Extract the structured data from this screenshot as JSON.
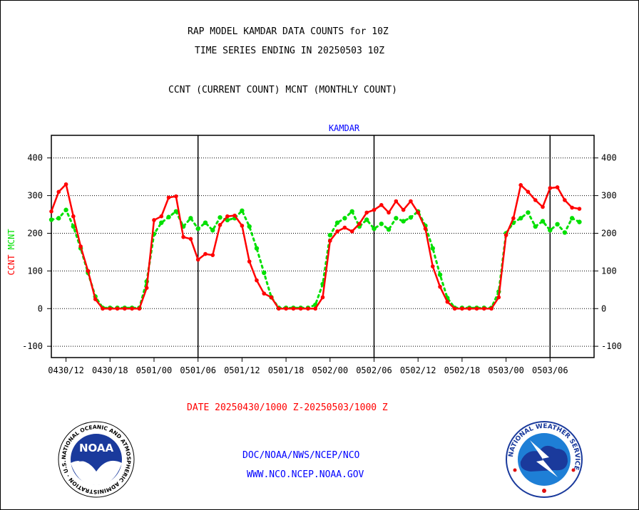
{
  "header": {
    "title_line1": "RAP MODEL KAMDAR DATA COUNTS for 10Z",
    "title_line2": "TIME SERIES ENDING IN 20250503 10Z",
    "subtitle": "CCNT (CURRENT COUNT) MCNT (MONTHLY COUNT)"
  },
  "footer": {
    "date_range": "DATE 20250430/1000 Z-20250503/1000 Z",
    "org_line": "DOC/NOAA/NWS/NCEP/NCO",
    "url_line": "WWW.NCO.NCEP.NOAA.GOV"
  },
  "logos": {
    "noaa_text": "NOAA",
    "noaa_ring": "NATIONAL OCEANIC AND ATMOSPHERIC ADMINISTRATION · U.S. DEPARTMENT OF COMMERCE ·",
    "nws_ring": "NATIONAL WEATHER SERVICE"
  },
  "chart_data": {
    "type": "line",
    "title": "KAMDAR",
    "ylabel_left_1": "CCNT",
    "ylabel_left_2": "MCNT",
    "ylim": [
      -130,
      460
    ],
    "xlim": [
      -2,
      72
    ],
    "yticks": [
      -100,
      0,
      100,
      200,
      300,
      400
    ],
    "xticks": [
      {
        "x": 0,
        "label": "0430/12"
      },
      {
        "x": 6,
        "label": "0430/18"
      },
      {
        "x": 12,
        "label": "0501/00"
      },
      {
        "x": 18,
        "label": "0501/06"
      },
      {
        "x": 24,
        "label": "0501/12"
      },
      {
        "x": 30,
        "label": "0501/18"
      },
      {
        "x": 36,
        "label": "0502/00"
      },
      {
        "x": 42,
        "label": "0502/06"
      },
      {
        "x": 48,
        "label": "0502/12"
      },
      {
        "x": 54,
        "label": "0502/18"
      },
      {
        "x": 60,
        "label": "0503/00"
      },
      {
        "x": 66,
        "label": "0503/06"
      }
    ],
    "vlines": [
      18,
      42,
      66
    ],
    "grid": true,
    "colors": {
      "ccnt": "#ff0000",
      "mcnt": "#00e000",
      "title": "#0000ff",
      "footer_date": "#ff0000",
      "footer_org": "#0000ff"
    },
    "x_start_hour_offset": -2,
    "series": [
      {
        "name": "CCNT",
        "color": "#ff0000",
        "values": [
          258,
          310,
          330,
          245,
          165,
          100,
          25,
          0,
          0,
          0,
          0,
          0,
          0,
          55,
          235,
          245,
          295,
          298,
          190,
          185,
          130,
          145,
          142,
          222,
          245,
          247,
          220,
          125,
          75,
          40,
          30,
          0,
          0,
          0,
          0,
          0,
          0,
          30,
          180,
          205,
          215,
          205,
          225,
          255,
          262,
          275,
          255,
          285,
          262,
          285,
          255,
          212,
          112,
          58,
          18,
          0,
          0,
          0,
          0,
          0,
          0,
          30,
          195,
          240,
          328,
          310,
          288,
          270,
          320,
          322,
          288,
          268,
          265
        ]
      },
      {
        "name": "MCNT",
        "color": "#00e000",
        "values": [
          236,
          240,
          262,
          218,
          160,
          95,
          32,
          2,
          2,
          2,
          2,
          2,
          2,
          72,
          198,
          228,
          243,
          258,
          218,
          240,
          212,
          228,
          208,
          242,
          235,
          240,
          260,
          218,
          160,
          95,
          30,
          2,
          2,
          2,
          2,
          2,
          10,
          65,
          195,
          228,
          240,
          258,
          218,
          236,
          212,
          225,
          210,
          240,
          232,
          242,
          258,
          220,
          160,
          90,
          28,
          2,
          2,
          2,
          2,
          2,
          2,
          45,
          200,
          228,
          240,
          255,
          218,
          232,
          208,
          224,
          202,
          240,
          230
        ]
      }
    ]
  }
}
